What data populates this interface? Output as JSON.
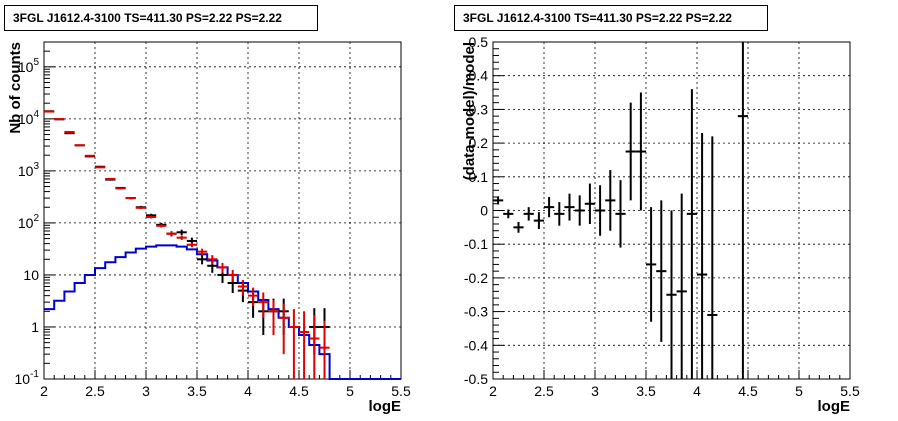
{
  "chart_data": [
    {
      "type": "histogram",
      "title": "3FGL J1612.4-3100 TS=411.30 PS=2.22 PS=2.22",
      "xlabel": "logE",
      "ylabel": "Nb of counts",
      "xlim": [
        2,
        5.5
      ],
      "ylim": [
        0.1,
        300000
      ],
      "log_y": true,
      "grid": true,
      "xticks": [
        "2",
        "2.5",
        "3",
        "3.5",
        "4",
        "4.5",
        "5",
        "5.5"
      ],
      "yticks": [
        {
          "value": 0.1,
          "base": "10",
          "exp": "-1"
        },
        {
          "value": 1,
          "base": "1",
          "exp": ""
        },
        {
          "value": 10,
          "base": "10",
          "exp": ""
        },
        {
          "value": 100,
          "base": "10",
          "exp": "2"
        },
        {
          "value": 1000,
          "base": "10",
          "exp": "3"
        },
        {
          "value": 10000,
          "base": "10",
          "exp": "4"
        },
        {
          "value": 100000,
          "base": "10",
          "exp": "5"
        }
      ],
      "x": [
        2.05,
        2.15,
        2.25,
        2.35,
        2.45,
        2.55,
        2.65,
        2.75,
        2.85,
        2.95,
        3.05,
        3.15,
        3.25,
        3.35,
        3.45,
        3.55,
        3.65,
        3.75,
        3.85,
        3.95,
        4.05,
        4.15,
        4.25,
        4.35,
        4.45,
        4.55,
        4.65,
        4.75,
        4.85,
        4.95,
        5.05,
        5.15,
        5.25,
        5.35,
        5.45
      ],
      "series": [
        {
          "color": "#000000",
          "style": "errorbar",
          "points": [
            {
              "x": 2.05,
              "y": 14000,
              "lo": 13700,
              "hi": 14300
            },
            {
              "x": 2.15,
              "y": 9800,
              "lo": 9600,
              "hi": 10000
            },
            {
              "x": 2.25,
              "y": 5300,
              "lo": 5150,
              "hi": 5450
            },
            {
              "x": 2.35,
              "y": 3100,
              "lo": 3000,
              "hi": 3200
            },
            {
              "x": 2.45,
              "y": 1900,
              "lo": 1830,
              "hi": 1970
            },
            {
              "x": 2.55,
              "y": 1200,
              "lo": 1150,
              "hi": 1250
            },
            {
              "x": 2.65,
              "y": 680,
              "lo": 650,
              "hi": 710
            },
            {
              "x": 2.75,
              "y": 470,
              "lo": 450,
              "hi": 490
            },
            {
              "x": 2.85,
              "y": 300,
              "lo": 285,
              "hi": 315
            },
            {
              "x": 2.95,
              "y": 200,
              "lo": 188,
              "hi": 212
            },
            {
              "x": 3.05,
              "y": 140,
              "lo": 130,
              "hi": 150
            },
            {
              "x": 3.15,
              "y": 92,
              "lo": 84,
              "hi": 100
            },
            {
              "x": 3.25,
              "y": 62,
              "lo": 55,
              "hi": 69
            },
            {
              "x": 3.35,
              "y": 66,
              "lo": 58,
              "hi": 74
            },
            {
              "x": 3.45,
              "y": 45,
              "lo": 39,
              "hi": 52
            },
            {
              "x": 3.55,
              "y": 20,
              "lo": 16,
              "hi": 25
            },
            {
              "x": 3.65,
              "y": 15,
              "lo": 11,
              "hi": 19
            },
            {
              "x": 3.75,
              "y": 10,
              "lo": 7,
              "hi": 14
            },
            {
              "x": 3.85,
              "y": 7,
              "lo": 4.5,
              "hi": 10
            },
            {
              "x": 3.95,
              "y": 5,
              "lo": 3,
              "hi": 7.5
            },
            {
              "x": 4.05,
              "y": 3,
              "lo": 1.5,
              "hi": 5
            },
            {
              "x": 4.15,
              "y": 2,
              "lo": 0.7,
              "hi": 3.5
            },
            {
              "x": 4.25,
              "y": 2,
              "lo": 0.7,
              "hi": 3.5
            },
            {
              "x": 4.35,
              "y": 2,
              "lo": 0.7,
              "hi": 3.5
            },
            {
              "x": 4.65,
              "y": 1,
              "lo": 0.3,
              "hi": 2.3
            },
            {
              "x": 4.75,
              "y": 1,
              "lo": 0.3,
              "hi": 2.3
            }
          ]
        },
        {
          "color": "#e00000",
          "style": "errorbar",
          "points": [
            {
              "x": 2.05,
              "y": 13800,
              "lo": 13600,
              "hi": 14000
            },
            {
              "x": 2.15,
              "y": 9900,
              "lo": 9700,
              "hi": 10100
            },
            {
              "x": 2.25,
              "y": 5600,
              "lo": 5450,
              "hi": 5750
            },
            {
              "x": 2.35,
              "y": 3100,
              "lo": 3000,
              "hi": 3200
            },
            {
              "x": 2.45,
              "y": 1950,
              "lo": 1890,
              "hi": 2010
            },
            {
              "x": 2.55,
              "y": 1170,
              "lo": 1130,
              "hi": 1210
            },
            {
              "x": 2.65,
              "y": 700,
              "lo": 670,
              "hi": 730
            },
            {
              "x": 2.75,
              "y": 460,
              "lo": 440,
              "hi": 480
            },
            {
              "x": 2.85,
              "y": 300,
              "lo": 285,
              "hi": 315
            },
            {
              "x": 2.95,
              "y": 195,
              "lo": 185,
              "hi": 205
            },
            {
              "x": 3.05,
              "y": 130,
              "lo": 122,
              "hi": 138
            },
            {
              "x": 3.15,
              "y": 88,
              "lo": 82,
              "hi": 94
            },
            {
              "x": 3.25,
              "y": 62,
              "lo": 57,
              "hi": 67
            },
            {
              "x": 3.35,
              "y": 52,
              "lo": 47,
              "hi": 57
            },
            {
              "x": 3.45,
              "y": 38,
              "lo": 34,
              "hi": 42
            },
            {
              "x": 3.55,
              "y": 28,
              "lo": 24,
              "hi": 32
            },
            {
              "x": 3.65,
              "y": 20,
              "lo": 16,
              "hi": 24
            },
            {
              "x": 3.75,
              "y": 14,
              "lo": 11,
              "hi": 17
            },
            {
              "x": 3.85,
              "y": 10,
              "lo": 7.5,
              "hi": 12.5
            },
            {
              "x": 3.95,
              "y": 6,
              "lo": 4,
              "hi": 8
            },
            {
              "x": 4.05,
              "y": 4,
              "lo": 2.5,
              "hi": 5.7
            },
            {
              "x": 4.15,
              "y": 3,
              "lo": 1.5,
              "hi": 4.6
            },
            {
              "x": 4.25,
              "y": 2,
              "lo": 0.7,
              "hi": 3.3
            },
            {
              "x": 4.35,
              "y": 1.5,
              "lo": 0.3,
              "hi": 2.8
            },
            {
              "x": 4.45,
              "y": 1,
              "lo": 0.1,
              "hi": 2.2
            },
            {
              "x": 4.55,
              "y": 0.8,
              "lo": 0.1,
              "hi": 2
            },
            {
              "x": 4.65,
              "y": 0.6,
              "lo": 0.1,
              "hi": 1.7
            },
            {
              "x": 4.75,
              "y": 0.4,
              "lo": 0.1,
              "hi": 1.3
            }
          ]
        },
        {
          "color": "#0000cc",
          "style": "step",
          "edges": [
            2.0,
            2.1,
            2.2,
            2.3,
            2.4,
            2.5,
            2.6,
            2.7,
            2.8,
            2.9,
            3.0,
            3.1,
            3.2,
            3.3,
            3.4,
            3.5,
            3.6,
            3.7,
            3.8,
            3.9,
            4.0,
            4.1,
            4.2,
            4.3,
            4.4,
            4.5,
            4.6,
            4.7,
            4.8,
            4.9,
            5.0,
            5.1,
            5.2,
            5.3,
            5.4,
            5.5
          ],
          "values": [
            2.2,
            3.2,
            4.8,
            7.0,
            10,
            13.5,
            17.5,
            22,
            27,
            32,
            35,
            37,
            37,
            35,
            31,
            25,
            19,
            14,
            10,
            7,
            4.8,
            3.3,
            2.2,
            1.5,
            1.0,
            0.7,
            0.45,
            0.3,
            0.1,
            0.1,
            0.1,
            0.1,
            0.1,
            0.1,
            0.1
          ]
        }
      ]
    },
    {
      "type": "scatter",
      "title": "3FGL J1612.4-3100 TS=411.30 PS=2.22 PS=2.22",
      "xlabel": "logE",
      "ylabel": "(data-model)/model",
      "xlim": [
        2,
        5.5
      ],
      "ylim": [
        -0.5,
        0.5
      ],
      "grid": true,
      "xticks": [
        "2",
        "2.5",
        "3",
        "3.5",
        "4",
        "4.5",
        "5",
        "5.5"
      ],
      "yticks": [
        "-0.5",
        "-0.4",
        "-0.3",
        "-0.2",
        "-0.1",
        "0",
        "0.1",
        "0.2",
        "0.3",
        "0.4",
        "0.5"
      ],
      "series": [
        {
          "color": "#000000",
          "style": "errorbar",
          "points": [
            {
              "x": 2.05,
              "y": 0.03,
              "lo": 0.018,
              "hi": 0.042
            },
            {
              "x": 2.15,
              "y": -0.01,
              "lo": -0.023,
              "hi": 0.003
            },
            {
              "x": 2.25,
              "y": -0.05,
              "lo": -0.066,
              "hi": -0.034
            },
            {
              "x": 2.35,
              "y": -0.01,
              "lo": -0.03,
              "hi": 0.01
            },
            {
              "x": 2.45,
              "y": -0.03,
              "lo": -0.055,
              "hi": -0.005
            },
            {
              "x": 2.55,
              "y": 0.01,
              "lo": -0.02,
              "hi": 0.04
            },
            {
              "x": 2.65,
              "y": -0.01,
              "lo": -0.045,
              "hi": 0.025
            },
            {
              "x": 2.75,
              "y": 0.01,
              "lo": -0.03,
              "hi": 0.05
            },
            {
              "x": 2.85,
              "y": 0.0,
              "lo": -0.045,
              "hi": 0.045
            },
            {
              "x": 2.95,
              "y": 0.02,
              "lo": -0.04,
              "hi": 0.08
            },
            {
              "x": 3.05,
              "y": 0.0,
              "lo": -0.075,
              "hi": 0.075
            },
            {
              "x": 3.15,
              "y": 0.03,
              "lo": -0.06,
              "hi": 0.12
            },
            {
              "x": 3.25,
              "y": -0.01,
              "lo": -0.11,
              "hi": 0.09
            },
            {
              "x": 3.35,
              "y": 0.175,
              "lo": 0.03,
              "hi": 0.32
            },
            {
              "x": 3.45,
              "y": 0.175,
              "lo": 0.0,
              "hi": 0.35
            },
            {
              "x": 3.55,
              "y": -0.16,
              "lo": -0.33,
              "hi": 0.01
            },
            {
              "x": 3.65,
              "y": -0.18,
              "lo": -0.39,
              "hi": 0.03
            },
            {
              "x": 3.75,
              "y": -0.25,
              "lo": -0.5,
              "hi": 0.0
            },
            {
              "x": 3.85,
              "y": -0.24,
              "lo": -0.5,
              "hi": 0.05
            },
            {
              "x": 3.95,
              "y": -0.01,
              "lo": -0.5,
              "hi": 0.36
            },
            {
              "x": 4.05,
              "y": -0.19,
              "lo": -0.5,
              "hi": 0.23
            },
            {
              "x": 4.15,
              "y": -0.31,
              "lo": -0.5,
              "hi": 0.22
            },
            {
              "x": 4.45,
              "y": 0.28,
              "lo": -0.5,
              "hi": 0.5
            }
          ]
        }
      ]
    }
  ]
}
